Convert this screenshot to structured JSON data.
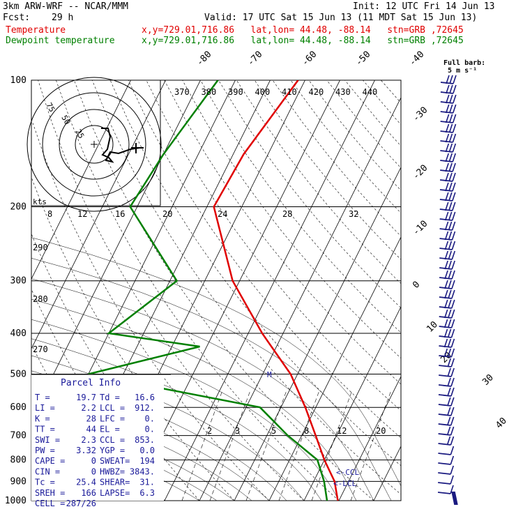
{
  "header": {
    "model": "3km ARW-WRF -- NCAR/MMM",
    "init": "Init: 12 UTC Fri 14 Jun 13",
    "fcst_label": "Fcst:",
    "fcst_value": "29 h",
    "valid": "Valid: 17 UTC Sat 15 Jun 13 (11 MDT Sat 15 Jun 13)",
    "temp_label": "Temperature",
    "dew_label": "Dewpoint temperature",
    "loc_line": "x,y=729.01,716.86   lat,lon= 44.48, -88.14   stn=GRB ,72645"
  },
  "colors": {
    "temperature": "#e00000",
    "dewpoint": "#008000",
    "barb": "#1a1a80",
    "parcel": "#1a1a9a"
  },
  "chart_data": {
    "type": "line",
    "pressure_ticks": [
      "100",
      "200",
      "300",
      "400",
      "500",
      "600",
      "700",
      "800",
      "900",
      "1000"
    ],
    "isotherm_labels": [
      "-80",
      "-70",
      "-60",
      "-50",
      "-40",
      "-30",
      "-20",
      "-10",
      "0",
      "10",
      "20",
      "30",
      "40"
    ],
    "theta_labels": [
      "370",
      "380",
      "390",
      "400",
      "410",
      "420",
      "430",
      "440"
    ],
    "theta_side_labels": [
      "290",
      "280",
      "270"
    ],
    "hodo_speed_labels": [
      "8",
      "12",
      "16",
      "20",
      "24",
      "28",
      "32"
    ],
    "hodo_unit": "kts",
    "hodo_ring_labels": [
      "75",
      "50",
      "25"
    ],
    "mixing_ratio_labels": [
      "2",
      "3",
      "5",
      "8",
      "12",
      "20"
    ],
    "barb_note": "Full barb:",
    "barb_note2": "5 m s⁻¹",
    "ccl_label": "<-CCL",
    "lcl_label": "<-LCL",
    "m_label": "M",
    "temperature": [
      {
        "p": 100,
        "t": -52
      },
      {
        "p": 150,
        "t": -57
      },
      {
        "p": 200,
        "t": -58
      },
      {
        "p": 300,
        "t": -42
      },
      {
        "p": 400,
        "t": -26
      },
      {
        "p": 500,
        "t": -12
      },
      {
        "p": 600,
        "t": -3
      },
      {
        "p": 700,
        "t": 4
      },
      {
        "p": 800,
        "t": 10
      },
      {
        "p": 900,
        "t": 16
      },
      {
        "p": 1000,
        "t": 19.7
      }
    ],
    "dewpoint": [
      {
        "p": 100,
        "t": -75
      },
      {
        "p": 150,
        "t": -80
      },
      {
        "p": 200,
        "t": -82
      },
      {
        "p": 300,
        "t": -58
      },
      {
        "p": 400,
        "t": -70
      },
      {
        "p": 430,
        "t": -42
      },
      {
        "p": 500,
        "t": -70
      },
      {
        "p": 600,
        "t": -16
      },
      {
        "p": 700,
        "t": -4
      },
      {
        "p": 800,
        "t": 8
      },
      {
        "p": 900,
        "t": 13
      },
      {
        "p": 1000,
        "t": 16.6
      }
    ]
  },
  "parcel": {
    "title": "Parcel Info",
    "rows": [
      {
        "a": "T  =",
        "b": "19.7",
        "c": "Td =",
        "d": "16.6"
      },
      {
        "a": "LI =",
        "b": "2.2",
        "c": "LCL =",
        "d": "912."
      },
      {
        "a": "K  =",
        "b": "28",
        "c": "LFC =",
        "d": "0."
      },
      {
        "a": "TT =",
        "b": "44",
        "c": "EL  =",
        "d": "0."
      },
      {
        "a": "SWI =",
        "b": "2.3",
        "c": "CCL =",
        "d": "853."
      },
      {
        "a": "PW =",
        "b": "3.32",
        "c": "YGP =",
        "d": "0.0"
      },
      {
        "a": "CAPE =",
        "b": "0",
        "c": "SWEAT=",
        "d": "194"
      },
      {
        "a": "CIN =",
        "b": "0",
        "c": "HWBZ=",
        "d": "3843."
      },
      {
        "a": "Tc =",
        "b": "25.4",
        "c": "SHEAR=",
        "d": "31."
      },
      {
        "a": "SREH =",
        "b": "166",
        "c": "LAPSE=",
        "d": "6.3"
      },
      {
        "a": "CELL =",
        "b": "287/26",
        "c": "",
        "d": ""
      }
    ]
  }
}
